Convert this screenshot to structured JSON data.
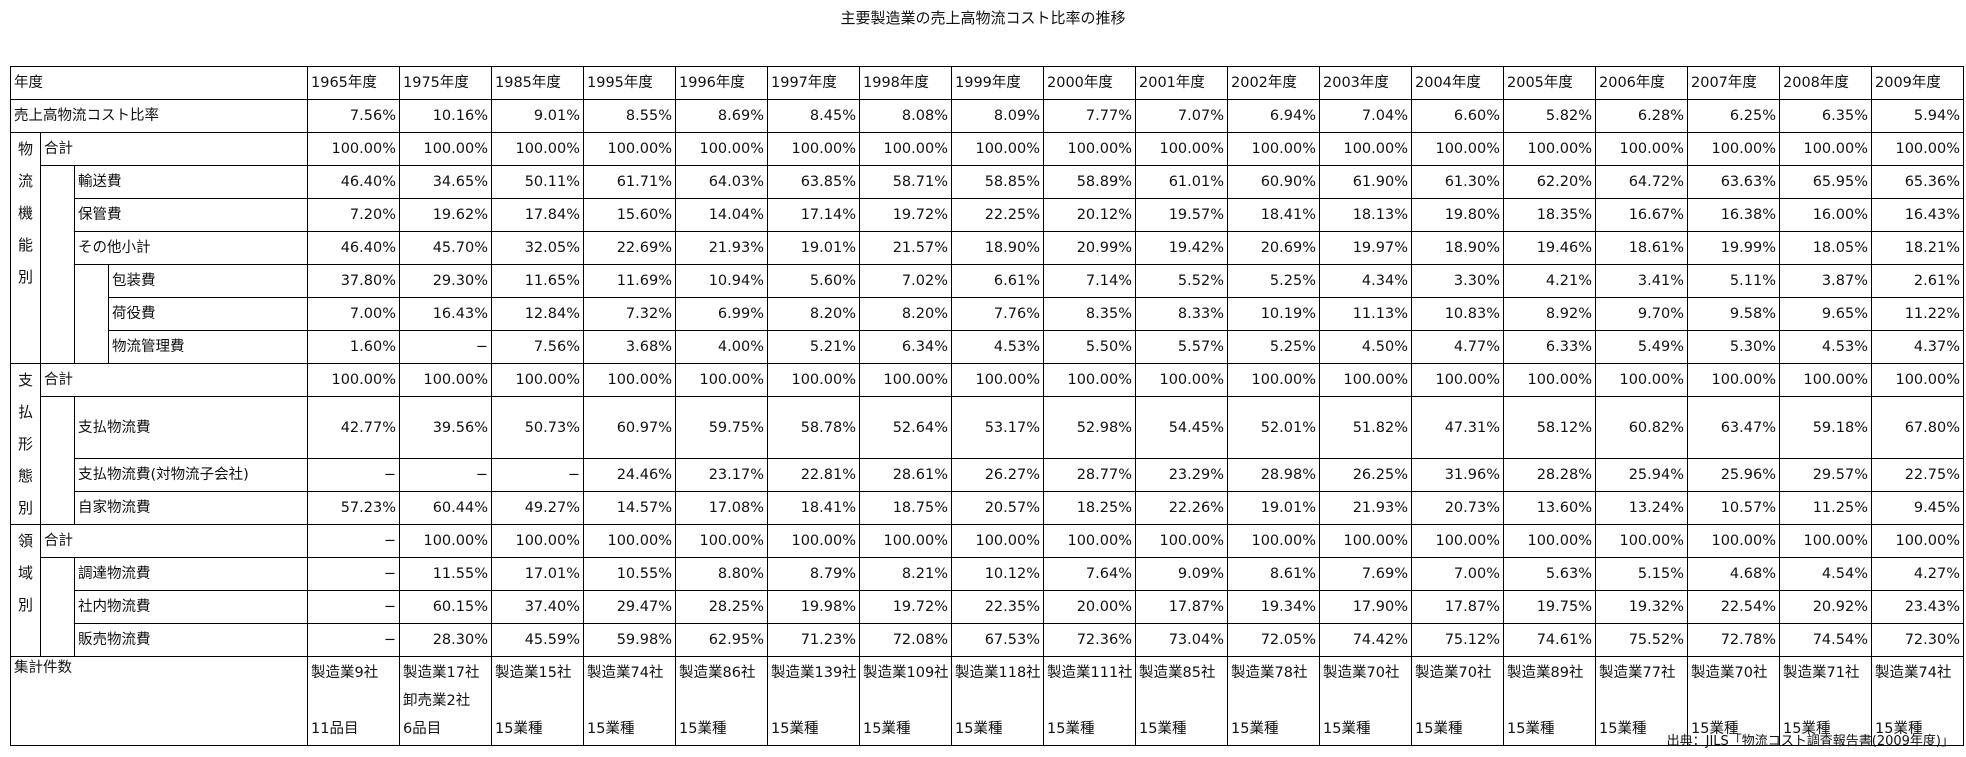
{
  "title": "主要製造業の売上高物流コスト比率の推移",
  "header_label": "年度",
  "years": [
    "1965年度",
    "1975年度",
    "1985年度",
    "1995年度",
    "1996年度",
    "1997年度",
    "1998年度",
    "1999年度",
    "2000年度",
    "2001年度",
    "2002年度",
    "2003年度",
    "2004年度",
    "2005年度",
    "2006年度",
    "2007年度",
    "2008年度",
    "2009年度"
  ],
  "ratio_row": {
    "label": "売上高物流コスト比率",
    "values": [
      "7.56%",
      "10.16%",
      "9.01%",
      "8.55%",
      "8.69%",
      "8.45%",
      "8.08%",
      "8.09%",
      "7.77%",
      "7.07%",
      "6.94%",
      "7.04%",
      "6.60%",
      "5.82%",
      "6.28%",
      "6.25%",
      "6.35%",
      "5.94%"
    ]
  },
  "groups": [
    {
      "name_chars": [
        "物",
        "流",
        "機",
        "能",
        "別"
      ],
      "rows": [
        {
          "level": 1,
          "label": "合計",
          "values": [
            "100.00%",
            "100.00%",
            "100.00%",
            "100.00%",
            "100.00%",
            "100.00%",
            "100.00%",
            "100.00%",
            "100.00%",
            "100.00%",
            "100.00%",
            "100.00%",
            "100.00%",
            "100.00%",
            "100.00%",
            "100.00%",
            "100.00%",
            "100.00%"
          ]
        },
        {
          "level": 2,
          "label": "輸送費",
          "values": [
            "46.40%",
            "34.65%",
            "50.11%",
            "61.71%",
            "64.03%",
            "63.85%",
            "58.71%",
            "58.85%",
            "58.89%",
            "61.01%",
            "60.90%",
            "61.90%",
            "61.30%",
            "62.20%",
            "64.72%",
            "63.63%",
            "65.95%",
            "65.36%"
          ]
        },
        {
          "level": 2,
          "label": "保管費",
          "values": [
            "7.20%",
            "19.62%",
            "17.84%",
            "15.60%",
            "14.04%",
            "17.14%",
            "19.72%",
            "22.25%",
            "20.12%",
            "19.57%",
            "18.41%",
            "18.13%",
            "19.80%",
            "18.35%",
            "16.67%",
            "16.38%",
            "16.00%",
            "16.43%"
          ]
        },
        {
          "level": 2,
          "label": "その他小計",
          "values": [
            "46.40%",
            "45.70%",
            "32.05%",
            "22.69%",
            "21.93%",
            "19.01%",
            "21.57%",
            "18.90%",
            "20.99%",
            "19.42%",
            "20.69%",
            "19.97%",
            "18.90%",
            "19.46%",
            "18.61%",
            "19.99%",
            "18.05%",
            "18.21%"
          ]
        },
        {
          "level": 3,
          "label": "包装費",
          "values": [
            "37.80%",
            "29.30%",
            "11.65%",
            "11.69%",
            "10.94%",
            "5.60%",
            "7.02%",
            "6.61%",
            "7.14%",
            "5.52%",
            "5.25%",
            "4.34%",
            "3.30%",
            "4.21%",
            "3.41%",
            "5.11%",
            "3.87%",
            "2.61%"
          ]
        },
        {
          "level": 3,
          "label": "荷役費",
          "values": [
            "7.00%",
            "16.43%",
            "12.84%",
            "7.32%",
            "6.99%",
            "8.20%",
            "8.20%",
            "7.76%",
            "8.35%",
            "8.33%",
            "10.19%",
            "11.13%",
            "10.83%",
            "8.92%",
            "9.70%",
            "9.58%",
            "9.65%",
            "11.22%"
          ]
        },
        {
          "level": 3,
          "label": "物流管理費",
          "values": [
            "1.60%",
            "−",
            "7.56%",
            "3.68%",
            "4.00%",
            "5.21%",
            "6.34%",
            "4.53%",
            "5.50%",
            "5.57%",
            "5.25%",
            "4.50%",
            "4.77%",
            "6.33%",
            "5.49%",
            "5.30%",
            "4.53%",
            "4.37%"
          ]
        }
      ]
    },
    {
      "name_chars": [
        "支",
        "払",
        "形",
        "態",
        "別"
      ],
      "rows": [
        {
          "level": 1,
          "label": "合計",
          "values": [
            "100.00%",
            "100.00%",
            "100.00%",
            "100.00%",
            "100.00%",
            "100.00%",
            "100.00%",
            "100.00%",
            "100.00%",
            "100.00%",
            "100.00%",
            "100.00%",
            "100.00%",
            "100.00%",
            "100.00%",
            "100.00%",
            "100.00%",
            "100.00%"
          ]
        },
        {
          "level": 2,
          "label": "支払物流費",
          "values": [
            "42.77%",
            "39.56%",
            "50.73%",
            "60.97%",
            "59.75%",
            "58.78%",
            "52.64%",
            "53.17%",
            "52.98%",
            "54.45%",
            "52.01%",
            "51.82%",
            "47.31%",
            "58.12%",
            "60.82%",
            "63.47%",
            "59.18%",
            "67.80%"
          ]
        },
        {
          "level": 2,
          "label": "支払物流費(対物流子会社)",
          "values": [
            "−",
            "−",
            "−",
            "24.46%",
            "23.17%",
            "22.81%",
            "28.61%",
            "26.27%",
            "28.77%",
            "23.29%",
            "28.98%",
            "26.25%",
            "31.96%",
            "28.28%",
            "25.94%",
            "25.96%",
            "29.57%",
            "22.75%"
          ]
        },
        {
          "level": 2,
          "label": "自家物流費",
          "values": [
            "57.23%",
            "60.44%",
            "49.27%",
            "14.57%",
            "17.08%",
            "18.41%",
            "18.75%",
            "20.57%",
            "18.25%",
            "22.26%",
            "19.01%",
            "21.93%",
            "20.73%",
            "13.60%",
            "13.24%",
            "10.57%",
            "11.25%",
            "9.45%"
          ]
        }
      ]
    },
    {
      "name_chars": [
        "領",
        "域",
        "別"
      ],
      "rows": [
        {
          "level": 1,
          "label": "合計",
          "values": [
            "−",
            "100.00%",
            "100.00%",
            "100.00%",
            "100.00%",
            "100.00%",
            "100.00%",
            "100.00%",
            "100.00%",
            "100.00%",
            "100.00%",
            "100.00%",
            "100.00%",
            "100.00%",
            "100.00%",
            "100.00%",
            "100.00%",
            "100.00%"
          ]
        },
        {
          "level": 2,
          "label": "調達物流費",
          "values": [
            "−",
            "11.55%",
            "17.01%",
            "10.55%",
            "8.80%",
            "8.79%",
            "8.21%",
            "10.12%",
            "7.64%",
            "9.09%",
            "8.61%",
            "7.69%",
            "7.00%",
            "5.63%",
            "5.15%",
            "4.68%",
            "4.54%",
            "4.27%"
          ]
        },
        {
          "level": 2,
          "label": "社内物流費",
          "values": [
            "−",
            "60.15%",
            "37.40%",
            "29.47%",
            "28.25%",
            "19.98%",
            "19.72%",
            "22.35%",
            "20.00%",
            "17.87%",
            "19.34%",
            "17.90%",
            "17.87%",
            "19.75%",
            "19.32%",
            "22.54%",
            "20.92%",
            "23.43%"
          ]
        },
        {
          "level": 2,
          "label": "販売物流費",
          "values": [
            "−",
            "28.30%",
            "45.59%",
            "59.98%",
            "62.95%",
            "71.23%",
            "72.08%",
            "67.53%",
            "72.36%",
            "73.04%",
            "72.05%",
            "74.42%",
            "75.12%",
            "74.61%",
            "75.52%",
            "72.78%",
            "74.54%",
            "72.30%"
          ]
        }
      ]
    }
  ],
  "count_row": {
    "label": "集計件数",
    "line1": [
      "製造業9社",
      "製造業17社",
      "製造業15社",
      "製造業74社",
      "製造業86社",
      "製造業139社",
      "製造業109社",
      "製造業118社",
      "製造業111社",
      "製造業85社",
      "製造業78社",
      "製造業70社",
      "製造業70社",
      "製造業89社",
      "製造業77社",
      "製造業70社",
      "製造業71社",
      "製造業74社"
    ],
    "line2": [
      "",
      "卸売業2社",
      "",
      "",
      "",
      "",
      "",
      "",
      "",
      "",
      "",
      "",
      "",
      "",
      "",
      "",
      "",
      ""
    ],
    "line3": [
      "11品目",
      "6品目",
      "15業種",
      "15業種",
      "15業種",
      "15業種",
      "15業種",
      "15業種",
      "15業種",
      "15業種",
      "15業種",
      "15業種",
      "15業種",
      "15業種",
      "15業種",
      "15業種",
      "15業種",
      "15業種"
    ]
  },
  "source": "出典：JILS「物流コスト調査報告書(2009年度)」"
}
